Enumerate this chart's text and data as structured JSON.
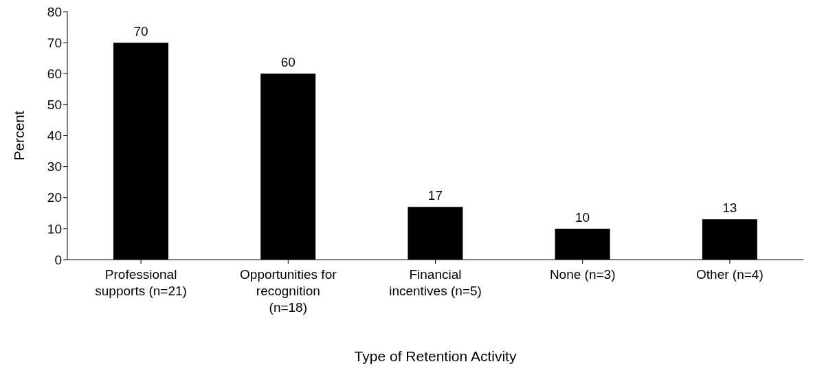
{
  "chart_data": {
    "type": "bar",
    "xlabel": "Type of Retention Activity",
    "ylabel": "Percent",
    "categories": [
      "Professional supports (n=21)",
      "Opportunities for recognition (n=18)",
      "Financial incentives (n=5)",
      "None (n=3)",
      "Other (n=4)"
    ],
    "values": [
      70,
      60,
      17,
      10,
      13
    ],
    "color": "#000000",
    "ylim": [
      0,
      80
    ],
    "yticks": [
      0,
      10,
      20,
      30,
      40,
      50,
      60,
      70,
      80
    ],
    "data_labels": true
  }
}
